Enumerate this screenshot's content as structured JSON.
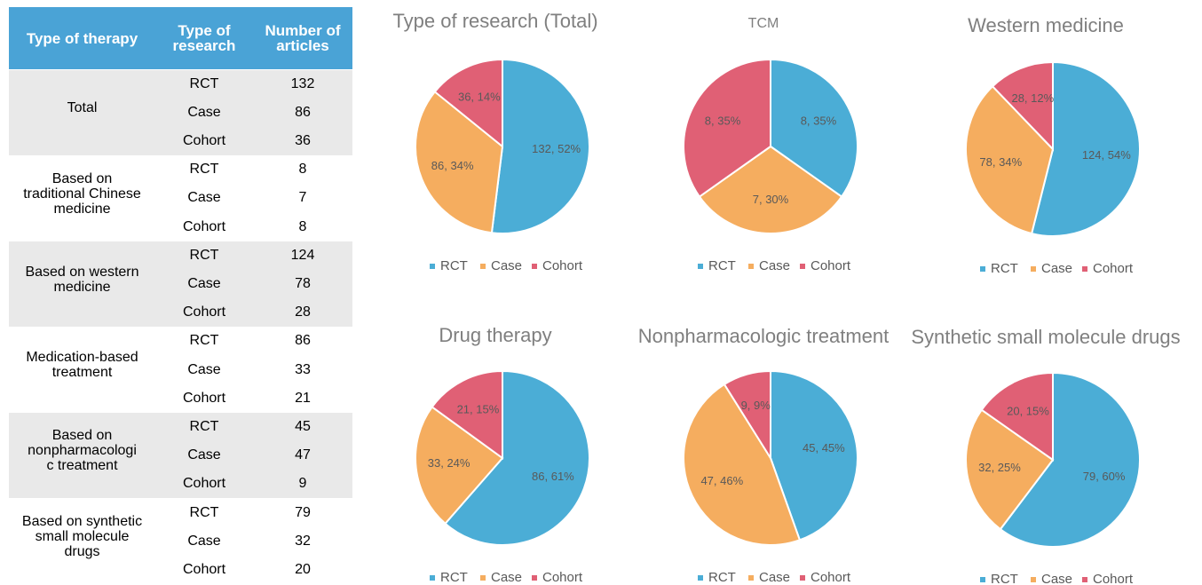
{
  "table": {
    "header": [
      "Type of therapy",
      "Type of research",
      "Number of articles"
    ],
    "groups": [
      {
        "therapy": "Total",
        "rows": [
          [
            "RCT",
            "132"
          ],
          [
            "Case",
            "86"
          ],
          [
            "Cohort",
            "36"
          ]
        ]
      },
      {
        "therapy": "Based on traditional Chinese medicine",
        "rows": [
          [
            "RCT",
            "8"
          ],
          [
            "Case",
            "7"
          ],
          [
            "Cohort",
            "8"
          ]
        ]
      },
      {
        "therapy": "Based on western medicine",
        "rows": [
          [
            "RCT",
            "124"
          ],
          [
            "Case",
            "78"
          ],
          [
            "Cohort",
            "28"
          ]
        ]
      },
      {
        "therapy": "Medication-based treatment",
        "rows": [
          [
            "RCT",
            "86"
          ],
          [
            "Case",
            "33"
          ],
          [
            "Cohort",
            "21"
          ]
        ]
      },
      {
        "therapy": "Based on nonpharmacologic treatment",
        "rows": [
          [
            "RCT",
            "45"
          ],
          [
            "Case",
            "47"
          ],
          [
            "Cohort",
            "9"
          ]
        ]
      },
      {
        "therapy": "Based on synthetic small molecule drugs",
        "rows": [
          [
            "RCT",
            "79"
          ],
          [
            "Case",
            "32"
          ],
          [
            "Cohort",
            "20"
          ]
        ]
      }
    ]
  },
  "chart_data": [
    {
      "type": "pie",
      "title": "Type of research (Total)",
      "categories": [
        "RCT",
        "Case",
        "Cohort"
      ],
      "colors": [
        "#4badd6",
        "#f5ad5f",
        "#e06075"
      ],
      "values": [
        132,
        86,
        36
      ],
      "value_labels": [
        "132, 52%",
        "86, 34%",
        "36, 14%"
      ]
    },
    {
      "type": "pie",
      "title": "TCM",
      "categories": [
        "RCT",
        "Case",
        "Cohort"
      ],
      "colors": [
        "#4badd6",
        "#f5ad5f",
        "#e06075"
      ],
      "values": [
        8,
        7,
        8
      ],
      "value_labels": [
        "8, 35%",
        "7, 30%",
        "8, 35%"
      ]
    },
    {
      "type": "pie",
      "title": "Western medicine",
      "categories": [
        "RCT",
        "Case",
        "Cohort"
      ],
      "colors": [
        "#4badd6",
        "#f5ad5f",
        "#e06075"
      ],
      "values": [
        124,
        78,
        28
      ],
      "value_labels": [
        "124, 54%",
        "78, 34%",
        "28, 12%"
      ]
    },
    {
      "type": "pie",
      "title": "Drug therapy",
      "categories": [
        "RCT",
        "Case",
        "Cohort"
      ],
      "colors": [
        "#4badd6",
        "#f5ad5f",
        "#e06075"
      ],
      "values": [
        86,
        33,
        21
      ],
      "value_labels": [
        "86, 61%",
        "33, 24%",
        "21, 15%"
      ]
    },
    {
      "type": "pie",
      "title": "Nonpharmacologic treatment",
      "categories": [
        "RCT",
        "Case",
        "Cohort"
      ],
      "colors": [
        "#4badd6",
        "#f5ad5f",
        "#e06075"
      ],
      "values": [
        45,
        47,
        9
      ],
      "value_labels": [
        "45, 45%",
        "47, 46%",
        "9, 9%"
      ]
    },
    {
      "type": "pie",
      "title": "Synthetic small molecule drugs",
      "categories": [
        "RCT",
        "Case",
        "Cohort"
      ],
      "colors": [
        "#4badd6",
        "#f5ad5f",
        "#e06075"
      ],
      "values": [
        79,
        32,
        20
      ],
      "value_labels": [
        "79, 60%",
        "32, 25%",
        "20, 15%"
      ]
    }
  ]
}
